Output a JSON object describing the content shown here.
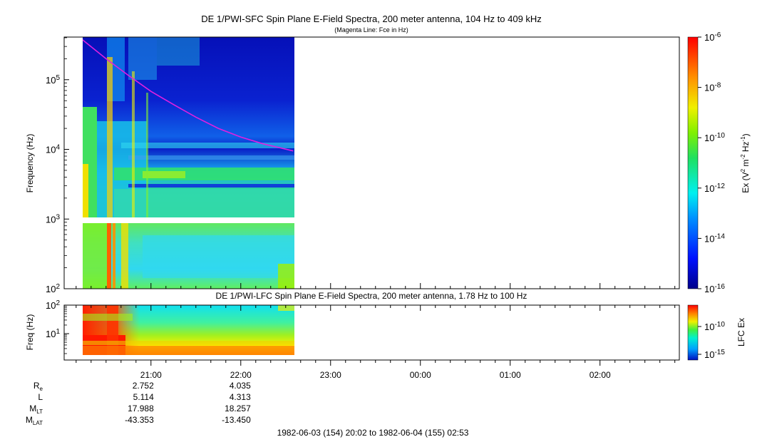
{
  "chart_data": [
    {
      "type": "heatmap",
      "title": "DE 1/PWI-SFC  Spin Plane E-Field Spectra, 200 meter antenna, 104 Hz to 409 kHz",
      "subtitle": "(Magenta Line: Fce in Hz)",
      "ylabel": "Frequency (Hz)",
      "yscale": "log",
      "ylim": [
        100,
        409000
      ],
      "yticks": [
        {
          "base": "10",
          "exp": "5",
          "value": 100000
        },
        {
          "base": "10",
          "exp": "4",
          "value": 10000
        },
        {
          "base": "10",
          "exp": "3",
          "value": 1000
        },
        {
          "base": "10",
          "exp": "2",
          "value": 100
        }
      ],
      "colorbar": {
        "label_parts": [
          "Ex (V",
          "2",
          " m",
          "-2",
          " Hz",
          "-1",
          ")"
        ],
        "scale": "log",
        "range": [
          1e-16,
          1e-06
        ],
        "ticks": [
          {
            "base": "10",
            "exp": "-6",
            "value": 1e-06
          },
          {
            "base": "10",
            "exp": "-8",
            "value": 1e-08
          },
          {
            "base": "10",
            "exp": "-10",
            "value": 1e-10
          },
          {
            "base": "10",
            "exp": "-12",
            "value": 1e-12
          },
          {
            "base": "10",
            "exp": "-14",
            "value": 1e-14
          },
          {
            "base": "10",
            "exp": "-16",
            "value": 1e-16
          }
        ]
      },
      "data_time_range": [
        "20:02",
        "22:36"
      ],
      "data_gap_freq_hz": [
        900,
        1100
      ],
      "fce_series": {
        "name": "Fce",
        "color": "#e020e0",
        "points": [
          {
            "time": "20:12",
            "hz": 409000
          },
          {
            "time": "20:30",
            "hz": 200000
          },
          {
            "time": "20:45",
            "hz": 115000
          },
          {
            "time": "21:00",
            "hz": 68000
          },
          {
            "time": "21:15",
            "hz": 44000
          },
          {
            "time": "21:30",
            "hz": 29000
          },
          {
            "time": "21:45",
            "hz": 20000
          },
          {
            "time": "22:00",
            "hz": 15000
          },
          {
            "time": "22:15",
            "hz": 12000
          },
          {
            "time": "22:35",
            "hz": 9500
          }
        ]
      },
      "colors": {
        "background_low": "#0a10b8",
        "high": "#ff2000"
      }
    },
    {
      "type": "heatmap",
      "title": "DE 1/PWI-LFC  Spin Plane E-Field Spectra, 200 meter antenna, 1.78 Hz to 100 Hz",
      "ylabel": "Freq (Hz)",
      "yscale": "log",
      "ylim": [
        1.78,
        100
      ],
      "yticks": [
        {
          "base": "10",
          "exp": "2",
          "value": 100
        },
        {
          "base": "10",
          "exp": "1",
          "value": 10
        }
      ],
      "colorbar": {
        "label": "LFC Ex",
        "scale": "log",
        "ticks": [
          {
            "base": "10",
            "exp": "-10",
            "value": 1e-10
          },
          {
            "base": "10",
            "exp": "-15",
            "value": 1e-15
          }
        ]
      },
      "data_time_range": [
        "20:02",
        "22:36"
      ]
    }
  ],
  "xaxis": {
    "range": [
      "20:02",
      "02:53"
    ],
    "tick_labels": [
      "21:00",
      "22:00",
      "23:00",
      "00:00",
      "01:00",
      "02:00"
    ]
  },
  "ephemeris": {
    "rows": [
      {
        "label": "R",
        "sub": "e",
        "values": [
          "2.752",
          "4.035"
        ]
      },
      {
        "label": "L",
        "sub": "",
        "values": [
          "5.114",
          "4.313"
        ]
      },
      {
        "label": "M",
        "sub": "LT",
        "values": [
          "17.988",
          "18.257"
        ]
      },
      {
        "label": "M",
        "sub": "LAT",
        "values": [
          "-43.353",
          "-13.450"
        ]
      }
    ]
  },
  "footer": "1982-06-03 (154) 20:02 to 1982-06-04 (155) 02:53"
}
